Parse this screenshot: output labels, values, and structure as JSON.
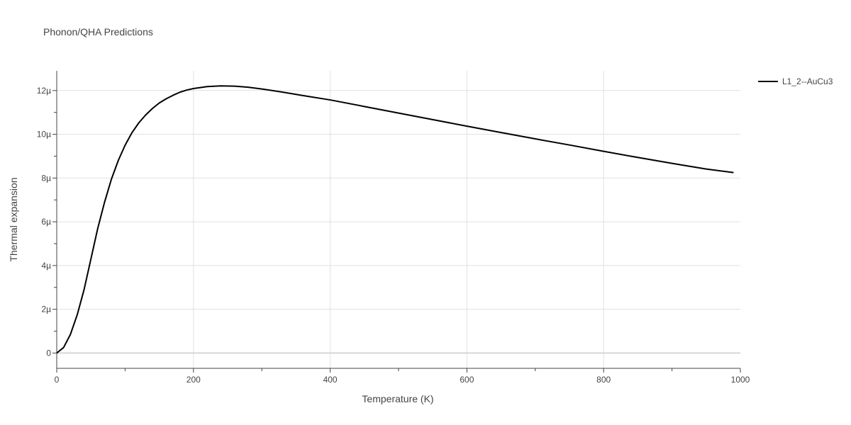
{
  "chart_data": {
    "type": "line",
    "title": "Phonon/QHA Predictions",
    "xlabel": "Temperature (K)",
    "ylabel": "Thermal expansion",
    "xlim": [
      0,
      1000
    ],
    "ylim": [
      -7e-07,
      1.29e-05
    ],
    "x_ticks": [
      {
        "value": 0,
        "label": "0"
      },
      {
        "value": 200,
        "label": "200"
      },
      {
        "value": 400,
        "label": "400"
      },
      {
        "value": 600,
        "label": "600"
      },
      {
        "value": 800,
        "label": "800"
      },
      {
        "value": 1000,
        "label": "1000"
      }
    ],
    "y_ticks": [
      {
        "value": 0,
        "label": "0"
      },
      {
        "value": 2e-06,
        "label": "2µ"
      },
      {
        "value": 4e-06,
        "label": "4µ"
      },
      {
        "value": 6e-06,
        "label": "6µ"
      },
      {
        "value": 8e-06,
        "label": "8µ"
      },
      {
        "value": 1e-05,
        "label": "10µ"
      },
      {
        "value": 1.2e-05,
        "label": "12µ"
      }
    ],
    "grid": true,
    "legend_position": "top-right",
    "series": [
      {
        "name": "L1_2--AuCu3",
        "color": "#000000",
        "x": [
          0,
          10,
          20,
          30,
          40,
          50,
          60,
          70,
          80,
          90,
          100,
          110,
          120,
          130,
          140,
          150,
          160,
          170,
          180,
          190,
          200,
          220,
          240,
          260,
          280,
          300,
          330,
          360,
          400,
          450,
          500,
          550,
          600,
          650,
          700,
          750,
          800,
          850,
          900,
          950,
          990
        ],
        "y": [
          0,
          2.5e-07,
          8.5e-07,
          1.75e-06,
          2.9e-06,
          4.3e-06,
          5.7e-06,
          6.9e-06,
          7.95e-06,
          8.8e-06,
          9.5e-06,
          1.007e-05,
          1.052e-05,
          1.088e-05,
          1.118e-05,
          1.143e-05,
          1.162e-05,
          1.178e-05,
          1.192e-05,
          1.202e-05,
          1.209e-05,
          1.218e-05,
          1.221e-05,
          1.22e-05,
          1.215e-05,
          1.207e-05,
          1.193e-05,
          1.177e-05,
          1.157e-05,
          1.127e-05,
          1.097e-05,
          1.067e-05,
          1.037e-05,
          1.008e-05,
          9.79e-06,
          9.51e-06,
          9.22e-06,
          8.94e-06,
          8.67e-06,
          8.41e-06,
          8.25e-06
        ]
      }
    ]
  }
}
